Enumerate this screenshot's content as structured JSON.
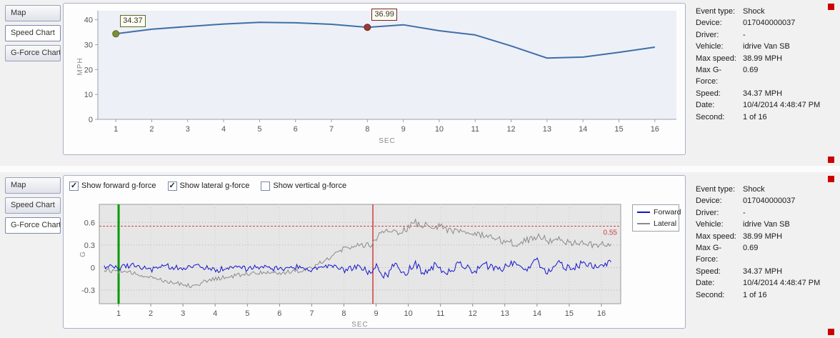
{
  "tabs": [
    "Map",
    "Speed Chart",
    "G-Force Chart"
  ],
  "top_panel": {
    "selected_tab": "Speed Chart"
  },
  "bottom_panel": {
    "selected_tab": "G-Force Chart",
    "checkboxes": [
      {
        "label": "Show forward g-force",
        "checked": true
      },
      {
        "label": "Show lateral g-force",
        "checked": true
      },
      {
        "label": "Show vertical g-force",
        "checked": false
      }
    ]
  },
  "event_info": {
    "rows": [
      {
        "label": "Event type:",
        "value": "Shock"
      },
      {
        "label": "Device:",
        "value": "017040000037"
      },
      {
        "label": "Driver:",
        "value": "-"
      },
      {
        "label": "Vehicle:",
        "value": "idrive Van SB"
      },
      {
        "label": "Max speed:",
        "value": "38.99 MPH"
      },
      {
        "label": "Max G-Force:",
        "value": "0.69"
      },
      {
        "label": "Speed:",
        "value": "34.37 MPH"
      },
      {
        "label": "Date:",
        "value": "10/4/2014 4:48:47 PM"
      },
      {
        "label": "Second:",
        "value": "1 of 16"
      }
    ]
  },
  "colors": {
    "speed_line": "#3f6fa8",
    "forward": "#1414cc",
    "lateral": "#8a8a8a",
    "start_line": "#009a00",
    "event_line": "#cc2222",
    "threshold": "#cc4444",
    "indicator": "#cc0000"
  },
  "chart_data": [
    {
      "type": "line",
      "name": "speed",
      "title": "Speed Chart",
      "xlabel": "SEC",
      "ylabel": "MPH",
      "x_ticks": [
        1,
        2,
        3,
        4,
        5,
        6,
        7,
        8,
        9,
        10,
        11,
        12,
        13,
        14,
        15,
        16
      ],
      "y_ticks": [
        0,
        10,
        20,
        30,
        40
      ],
      "xlim": [
        0.5,
        16.6
      ],
      "ylim": [
        0,
        42.5
      ],
      "x": [
        1,
        2,
        3,
        4,
        5,
        6,
        7,
        8,
        9,
        10,
        11,
        12,
        13,
        14,
        15,
        16
      ],
      "values": [
        34.37,
        36.2,
        37.3,
        38.3,
        38.99,
        38.8,
        38.2,
        36.99,
        38.0,
        35.6,
        33.9,
        29.5,
        24.6,
        25.0,
        26.9,
        29.0
      ],
      "line_color": "#3f6fa8",
      "markers": [
        {
          "role": "start",
          "x": 1,
          "y": 34.37,
          "label": "34.37",
          "fill": "#7d8f35",
          "stroke": "#5a6a20"
        },
        {
          "role": "event",
          "x": 8,
          "y": 36.99,
          "label": "36.99",
          "fill": "#9a3a36",
          "stroke": "#6f2522"
        }
      ]
    },
    {
      "type": "line",
      "name": "gforce",
      "title": "G-Force Chart",
      "xlabel": "SEC",
      "ylabel": "G",
      "x_ticks": [
        1,
        2,
        3,
        4,
        5,
        6,
        7,
        8,
        9,
        10,
        11,
        12,
        13,
        14,
        15,
        16
      ],
      "y_ticks": [
        -0.3,
        0,
        0.3,
        0.6
      ],
      "xlim": [
        0.4,
        16.6
      ],
      "ylim": [
        -0.48,
        0.84
      ],
      "threshold": {
        "value": 0.55,
        "label": "0.55"
      },
      "start_line_x": 1,
      "event_line_x": 8.9,
      "noise_seed": 12,
      "sample_step": 0.045,
      "x_start": 0.55,
      "x_end": 16.3,
      "legend": [
        "Forward",
        "Lateral"
      ],
      "series": [
        {
          "name": "Forward",
          "color": "#1414cc",
          "anchors": [
            [
              0.4,
              0.02
            ],
            [
              1,
              0
            ],
            [
              1.5,
              0.04
            ],
            [
              2,
              -0.03
            ],
            [
              2.5,
              0.02
            ],
            [
              3,
              -0.02
            ],
            [
              3.5,
              0.03
            ],
            [
              4,
              -0.04
            ],
            [
              4.5,
              0.01
            ],
            [
              5,
              -0.02
            ],
            [
              5.5,
              0.02
            ],
            [
              6,
              -0.03
            ],
            [
              6.5,
              0.01
            ],
            [
              7,
              -0.02
            ],
            [
              7.5,
              0.02
            ],
            [
              8,
              -0.04
            ],
            [
              8.4,
              0.02
            ],
            [
              8.8,
              -0.06
            ],
            [
              9,
              0.02
            ],
            [
              9.3,
              -0.12
            ],
            [
              9.6,
              0.1
            ],
            [
              9.9,
              -0.1
            ],
            [
              10.2,
              0.06
            ],
            [
              10.5,
              -0.08
            ],
            [
              10.8,
              0.03
            ],
            [
              11.2,
              -0.06
            ],
            [
              11.6,
              0.05
            ],
            [
              12,
              -0.05
            ],
            [
              12.4,
              0.04
            ],
            [
              12.8,
              -0.04
            ],
            [
              13.2,
              0.07
            ],
            [
              13.6,
              -0.03
            ],
            [
              14,
              0.09
            ],
            [
              14.3,
              -0.05
            ],
            [
              14.7,
              0.06
            ],
            [
              15,
              -0.02
            ],
            [
              15.4,
              0.05
            ],
            [
              15.8,
              0.02
            ],
            [
              16.2,
              0.06
            ]
          ],
          "noise": [
            [
              0.4,
              0.035
            ],
            [
              8.5,
              0.04
            ],
            [
              9,
              0.06
            ],
            [
              12,
              0.05
            ],
            [
              16.3,
              0.045
            ]
          ]
        },
        {
          "name": "Lateral",
          "color": "#8a8a8a",
          "anchors": [
            [
              0.4,
              -0.02
            ],
            [
              1,
              -0.05
            ],
            [
              1.5,
              -0.08
            ],
            [
              2,
              -0.12
            ],
            [
              2.5,
              -0.18
            ],
            [
              3,
              -0.22
            ],
            [
              3.3,
              -0.24
            ],
            [
              3.6,
              -0.2
            ],
            [
              4,
              -0.15
            ],
            [
              4.5,
              -0.12
            ],
            [
              5,
              -0.08
            ],
            [
              5.5,
              -0.06
            ],
            [
              6,
              -0.07
            ],
            [
              6.5,
              -0.05
            ],
            [
              7,
              0
            ],
            [
              7.3,
              0.08
            ],
            [
              7.6,
              0.15
            ],
            [
              8,
              0.25
            ],
            [
              8.3,
              0.3
            ],
            [
              8.6,
              0.28
            ],
            [
              8.9,
              0.33
            ],
            [
              9.1,
              0.45
            ],
            [
              9.4,
              0.48
            ],
            [
              9.7,
              0.47
            ],
            [
              10,
              0.52
            ],
            [
              10.2,
              0.6
            ],
            [
              10.4,
              0.55
            ],
            [
              10.7,
              0.57
            ],
            [
              11,
              0.55
            ],
            [
              11.3,
              0.5
            ],
            [
              11.6,
              0.48
            ],
            [
              12,
              0.45
            ],
            [
              12.3,
              0.42
            ],
            [
              12.6,
              0.38
            ],
            [
              13,
              0.35
            ],
            [
              13.4,
              0.32
            ],
            [
              13.8,
              0.38
            ],
            [
              14.1,
              0.42
            ],
            [
              14.4,
              0.35
            ],
            [
              14.7,
              0.38
            ],
            [
              15,
              0.33
            ],
            [
              15.4,
              0.32
            ],
            [
              15.8,
              0.3
            ],
            [
              16.2,
              0.31
            ]
          ],
          "noise": [
            [
              0.4,
              0.03
            ],
            [
              7,
              0.03
            ],
            [
              8,
              0.04
            ],
            [
              9,
              0.05
            ],
            [
              13,
              0.05
            ],
            [
              16.3,
              0.04
            ]
          ]
        }
      ]
    }
  ]
}
